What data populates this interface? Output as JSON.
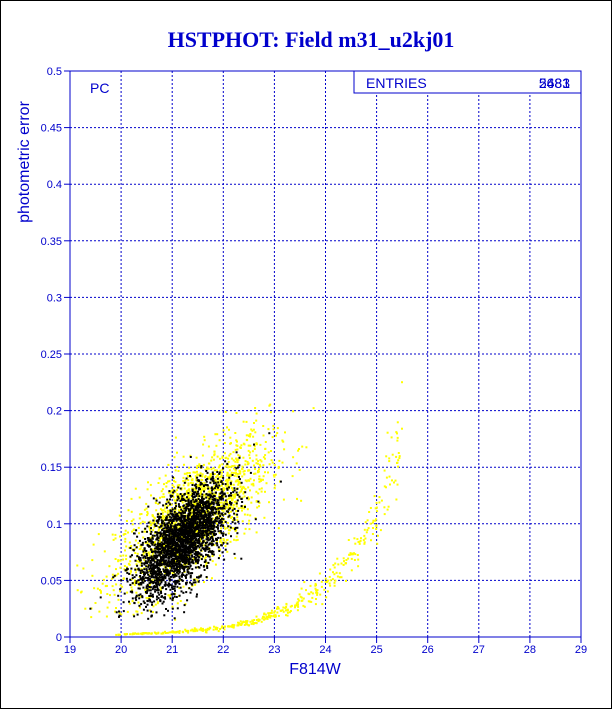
{
  "chart_data": {
    "type": "scatter",
    "title": "HSTPHOT: Field m31_u2kj01",
    "xlabel": "F814W",
    "ylabel": "photometric error",
    "annotation": "PC",
    "xlim": [
      19,
      29
    ],
    "ylim": [
      0,
      0.5
    ],
    "x_ticks": [
      "19",
      "20",
      "21",
      "22",
      "23",
      "24",
      "25",
      "26",
      "27",
      "28",
      "29"
    ],
    "y_ticks": [
      "0",
      "0.05",
      "0.1",
      "0.15",
      "0.2",
      "0.25",
      "0.3",
      "0.35",
      "0.4",
      "0.45",
      "0.5"
    ],
    "grid": true,
    "stats_box": {
      "label": "ENTRIES",
      "values": [
        "5483",
        "2681"
      ]
    },
    "series": [
      {
        "color": "#ffff00",
        "clusters": [
          {
            "center": [
              21.4,
              0.105
            ],
            "spread": [
              0.75,
              0.035
            ],
            "corr": 0.7,
            "n": 1800
          }
        ],
        "sequence": {
          "points": [
            [
              19.9,
              0.002
            ],
            [
              21.0,
              0.004
            ],
            [
              22.0,
              0.008
            ],
            [
              22.7,
              0.015
            ],
            [
              23.3,
              0.026
            ],
            [
              23.8,
              0.04
            ],
            [
              24.3,
              0.06
            ],
            [
              24.7,
              0.085
            ],
            [
              25.1,
              0.12
            ],
            [
              25.5,
              0.18
            ]
          ],
          "n": 420
        },
        "outliers": [
          [
            19.3,
            0.025
          ],
          [
            19.5,
            0.03
          ],
          [
            19.7,
            0.045
          ],
          [
            19.9,
            0.06
          ],
          [
            20.1,
            0.08
          ]
        ]
      },
      {
        "color": "#000000",
        "clusters": [
          {
            "center": [
              21.2,
              0.085
            ],
            "spread": [
              0.45,
              0.025
            ],
            "corr": 0.65,
            "n": 2600
          }
        ],
        "outliers": [
          [
            19.4,
            0.025
          ],
          [
            19.6,
            0.035
          ],
          [
            20.0,
            0.05
          ],
          [
            22.6,
            0.17
          ],
          [
            22.9,
            0.18
          ]
        ]
      }
    ]
  }
}
